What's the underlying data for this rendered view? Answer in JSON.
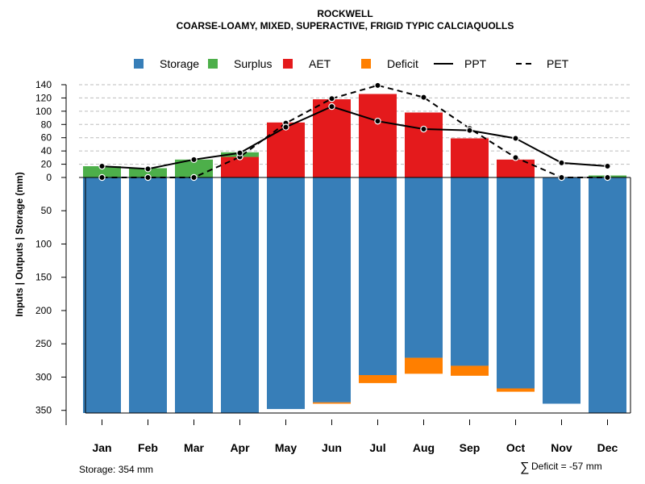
{
  "chart_data": {
    "type": "bar",
    "title": "ROCKWELL",
    "subtitle": "COARSE-LOAMY, MIXED, SUPERACTIVE, FRIGID TYPIC CALCIAQUOLLS",
    "ylabel": "Inputs | Outputs | Storage    (mm)",
    "categories": [
      "Jan",
      "Feb",
      "Mar",
      "Apr",
      "May",
      "Jun",
      "Jul",
      "Aug",
      "Sep",
      "Oct",
      "Nov",
      "Dec"
    ],
    "upper_ticks": [
      "140",
      "120",
      "100",
      "80",
      "60",
      "40",
      "20",
      "0"
    ],
    "lower_ticks": [
      "50",
      "100",
      "150",
      "200",
      "250",
      "300",
      "350"
    ],
    "legend": [
      {
        "label": "Storage",
        "kind": "box",
        "color": "#377EB8"
      },
      {
        "label": "Surplus",
        "kind": "box",
        "color": "#4DAF4A"
      },
      {
        "label": "AET",
        "kind": "box",
        "color": "#E41A1C"
      },
      {
        "label": "Deficit",
        "kind": "box",
        "color": "#FF7F00"
      },
      {
        "label": "PPT",
        "kind": "solid",
        "color": "#000000"
      },
      {
        "label": "PET",
        "kind": "dashed",
        "color": "#000000"
      }
    ],
    "series": [
      {
        "name": "Storage",
        "values": [
          354,
          354,
          354,
          354,
          348,
          338,
          297,
          271,
          283,
          317,
          340,
          354
        ]
      },
      {
        "name": "Surplus",
        "values": [
          17,
          14,
          27,
          7,
          0,
          0,
          0,
          0,
          0,
          0,
          0,
          3
        ]
      },
      {
        "name": "AET",
        "values": [
          0,
          0,
          0,
          31,
          83,
          118,
          126,
          98,
          59,
          27,
          0,
          0
        ]
      },
      {
        "name": "Deficit",
        "values": [
          0,
          0,
          0,
          0,
          0,
          2,
          12,
          24,
          15,
          5,
          0,
          0
        ]
      },
      {
        "name": "PPT",
        "values": [
          17,
          13,
          27,
          37,
          76,
          107,
          85,
          73,
          71,
          59,
          22,
          17
        ]
      },
      {
        "name": "PET",
        "values": [
          0,
          0,
          0,
          31,
          82,
          119,
          139,
          121,
          74,
          30,
          0,
          0
        ]
      }
    ],
    "ylim_upper": [
      0,
      140
    ],
    "ylim_lower": [
      0,
      354
    ],
    "colors": {
      "storage": "#377EB8",
      "surplus": "#4DAF4A",
      "aet": "#E41A1C",
      "deficit": "#FF7F00",
      "grid": "#BDBDBD"
    }
  },
  "footer": {
    "storage_note": "Storage: 354 mm",
    "deficit_symbol": "∑",
    "deficit_note": "Deficit = -57 mm"
  }
}
